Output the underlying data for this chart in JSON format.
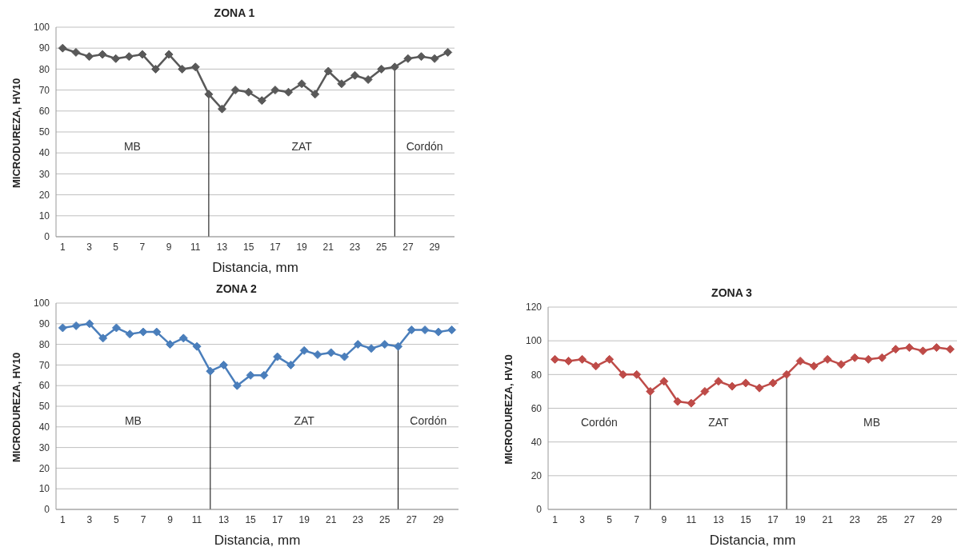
{
  "chart_data": [
    {
      "type": "line",
      "title": "ZONA 1",
      "xlabel": "Distancia, mm",
      "ylabel": "MICRODUREZA, HV10",
      "x": [
        1,
        2,
        3,
        4,
        5,
        6,
        7,
        8,
        9,
        10,
        11,
        12,
        13,
        14,
        15,
        16,
        17,
        18,
        19,
        20,
        21,
        22,
        23,
        24,
        25,
        26,
        27,
        28,
        29,
        30
      ],
      "xlim": [
        0.5,
        30.5
      ],
      "xticks": [
        1,
        3,
        5,
        7,
        9,
        11,
        13,
        15,
        17,
        19,
        21,
        23,
        25,
        27,
        29
      ],
      "ylim": [
        0,
        100
      ],
      "yticks": [
        0,
        10,
        20,
        30,
        40,
        50,
        60,
        70,
        80,
        90,
        100
      ],
      "grid": "y",
      "marker": "diamond",
      "series": [
        {
          "color": "#595959",
          "values": [
            90,
            88,
            86,
            87,
            85,
            86,
            87,
            80,
            87,
            80,
            81,
            68,
            61,
            70,
            69,
            65,
            70,
            69,
            73,
            68,
            79,
            73,
            77,
            75,
            80,
            81,
            85,
            86,
            85,
            88
          ]
        }
      ],
      "ref_lines": [
        {
          "axis": "x",
          "value": 12,
          "color": "#000000"
        },
        {
          "axis": "x",
          "value": 26,
          "color": "#000000"
        }
      ],
      "annotations": [
        "MB",
        "ZAT",
        "Cordón"
      ]
    },
    {
      "type": "line",
      "title": "ZONA 2",
      "xlabel": "Distancia, mm",
      "ylabel": "MICRODUREZA, HV10",
      "x": [
        1,
        2,
        3,
        4,
        5,
        6,
        7,
        8,
        9,
        10,
        11,
        12,
        13,
        14,
        15,
        16,
        17,
        18,
        19,
        20,
        21,
        22,
        23,
        24,
        25,
        26,
        27,
        28,
        29,
        30
      ],
      "xlim": [
        0.5,
        30.5
      ],
      "xticks": [
        1,
        3,
        5,
        7,
        9,
        11,
        13,
        15,
        17,
        19,
        21,
        23,
        25,
        27,
        29
      ],
      "ylim": [
        0,
        100
      ],
      "yticks": [
        0,
        10,
        20,
        30,
        40,
        50,
        60,
        70,
        80,
        90,
        100
      ],
      "grid": "y",
      "marker": "diamond",
      "series": [
        {
          "color": "#4a7ebb",
          "values": [
            88,
            89,
            90,
            83,
            88,
            85,
            86,
            86,
            80,
            83,
            79,
            67,
            70,
            60,
            65,
            65,
            74,
            70,
            77,
            75,
            76,
            74,
            80,
            78,
            80,
            79,
            87,
            87,
            86,
            87
          ]
        }
      ],
      "ref_lines": [
        {
          "axis": "x",
          "value": 12,
          "color": "#000000"
        },
        {
          "axis": "x",
          "value": 26,
          "color": "#000000"
        }
      ],
      "annotations": [
        "MB",
        "ZAT",
        "Cordón"
      ]
    },
    {
      "type": "line",
      "title": "ZONA 3",
      "xlabel": "Distancia, mm",
      "ylabel": "MICRODUREZA, HV10",
      "x": [
        1,
        2,
        3,
        4,
        5,
        6,
        7,
        8,
        9,
        10,
        11,
        12,
        13,
        14,
        15,
        16,
        17,
        18,
        19,
        20,
        21,
        22,
        23,
        24,
        25,
        26,
        27,
        28,
        29,
        30
      ],
      "xlim": [
        0.5,
        30.5
      ],
      "xticks": [
        1,
        3,
        5,
        7,
        9,
        11,
        13,
        15,
        17,
        19,
        21,
        23,
        25,
        27,
        29
      ],
      "ylim": [
        0,
        120
      ],
      "yticks": [
        0,
        20,
        40,
        60,
        80,
        100,
        120
      ],
      "grid": "y",
      "marker": "diamond",
      "series": [
        {
          "color": "#be4b48",
          "values": [
            89,
            88,
            89,
            85,
            89,
            80,
            80,
            70,
            76,
            64,
            63,
            70,
            76,
            73,
            75,
            72,
            75,
            80,
            88,
            85,
            89,
            86,
            90,
            89,
            90,
            95,
            96,
            94,
            96,
            95
          ]
        }
      ],
      "ref_lines": [
        {
          "axis": "x",
          "value": 8,
          "color": "#000000"
        },
        {
          "axis": "x",
          "value": 18,
          "color": "#000000"
        }
      ],
      "annotations": [
        "Cordón",
        "ZAT",
        "MB"
      ]
    }
  ]
}
